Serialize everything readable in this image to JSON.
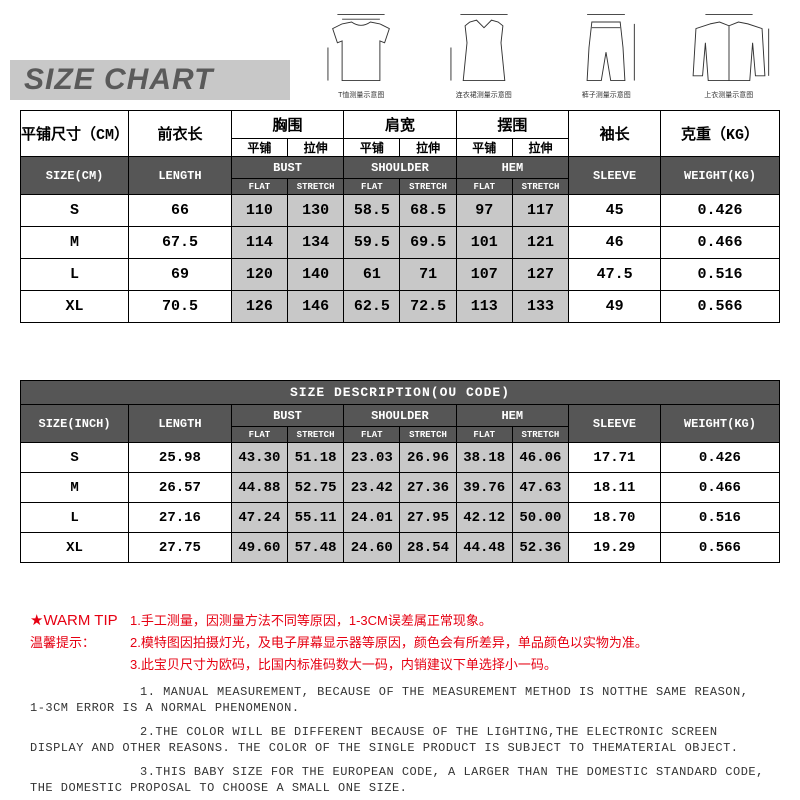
{
  "title": "SIZE CHART",
  "diagrams": {
    "captions": [
      "T恤测量示意图",
      "连衣裙测量示意图",
      "裤子测量示意图",
      "上衣测量示意图"
    ]
  },
  "table1": {
    "header_cn": {
      "size": "平铺尺寸（CM）",
      "length": "前衣长",
      "bust": "胸围",
      "shoulder": "肩宽",
      "hem": "摆围",
      "sleeve": "袖长",
      "weight": "克重（KG）"
    },
    "sub_cn": {
      "flat": "平铺",
      "stretch": "拉伸"
    },
    "header_en": {
      "size": "SIZE(CM)",
      "length": "LENGTH",
      "bust": "BUST",
      "shoulder": "SHOULDER",
      "hem": "HEM",
      "sleeve": "SLEEVE",
      "weight": "WEIGHT(KG)"
    },
    "sub_en": {
      "flat": "FLAT",
      "stretch": "STRETCH"
    },
    "rows": [
      {
        "size": "S",
        "length": "66",
        "bf": "110",
        "bs": "130",
        "sf": "58.5",
        "ss": "68.5",
        "hf": "97",
        "hs": "117",
        "sleeve": "45",
        "weight": "0.426"
      },
      {
        "size": "M",
        "length": "67.5",
        "bf": "114",
        "bs": "134",
        "sf": "59.5",
        "ss": "69.5",
        "hf": "101",
        "hs": "121",
        "sleeve": "46",
        "weight": "0.466"
      },
      {
        "size": "L",
        "length": "69",
        "bf": "120",
        "bs": "140",
        "sf": "61",
        "ss": "71",
        "hf": "107",
        "hs": "127",
        "sleeve": "47.5",
        "weight": "0.516"
      },
      {
        "size": "XL",
        "length": "70.5",
        "bf": "126",
        "bs": "146",
        "sf": "62.5",
        "ss": "72.5",
        "hf": "113",
        "hs": "133",
        "sleeve": "49",
        "weight": "0.566"
      }
    ]
  },
  "table2": {
    "desc_header": "SIZE DESCRIPTION(OU CODE)",
    "header_en": {
      "size": "SIZE(INCH)",
      "length": "LENGTH",
      "bust": "BUST",
      "shoulder": "SHOULDER",
      "hem": "HEM",
      "sleeve": "SLEEVE",
      "weight": "WEIGHT(KG)"
    },
    "sub_en": {
      "flat": "FLAT",
      "stretch": "STRETCH"
    },
    "rows": [
      {
        "size": "S",
        "length": "25.98",
        "bf": "43.30",
        "bs": "51.18",
        "sf": "23.03",
        "ss": "26.96",
        "hf": "38.18",
        "hs": "46.06",
        "sleeve": "17.71",
        "weight": "0.426"
      },
      {
        "size": "M",
        "length": "26.57",
        "bf": "44.88",
        "bs": "52.75",
        "sf": "23.42",
        "ss": "27.36",
        "hf": "39.76",
        "hs": "47.63",
        "sleeve": "18.11",
        "weight": "0.466"
      },
      {
        "size": "L",
        "length": "27.16",
        "bf": "47.24",
        "bs": "55.11",
        "sf": "24.01",
        "ss": "27.95",
        "hf": "42.12",
        "hs": "50.00",
        "sleeve": "18.70",
        "weight": "0.516"
      },
      {
        "size": "XL",
        "length": "27.75",
        "bf": "49.60",
        "bs": "57.48",
        "sf": "24.60",
        "ss": "28.54",
        "hf": "44.48",
        "hs": "52.36",
        "sleeve": "19.29",
        "weight": "0.566"
      }
    ]
  },
  "tips": {
    "cn_label1": "★WARM TIP",
    "cn_label2": "温馨提示：",
    "cn": [
      "1.手工测量，因测量方法不同等原因，1-3CM误差属正常现象。",
      "2.模特图因拍摄灯光，及电子屏幕显示器等原因，颜色会有所差异，单品颜色以实物为准。",
      "3.此宝贝尺寸为欧码，比国内标准码数大一码，内销建议下单选择小一码。"
    ],
    "en": [
      "1. MANUAL MEASUREMENT, BECAUSE OF THE MEASUREMENT METHOD IS NOTTHE SAME REASON, 1-3CM ERROR IS A NORMAL PHENOMENON.",
      "2.THE COLOR WILL BE DIFFERENT BECAUSE OF THE LIGHTING,THE ELECTRONIC SCREEN DISPLAY AND OTHER REASONS. THE COLOR OF THE SINGLE PRODUCT IS SUBJECT TO THEMATERIAL OBJECT.",
      "3.THIS BABY SIZE FOR THE EUROPEAN CODE, A LARGER THAN THE DOMESTIC STANDARD CODE, THE DOMESTIC PROPOSAL TO CHOOSE A SMALL ONE SIZE."
    ]
  }
}
